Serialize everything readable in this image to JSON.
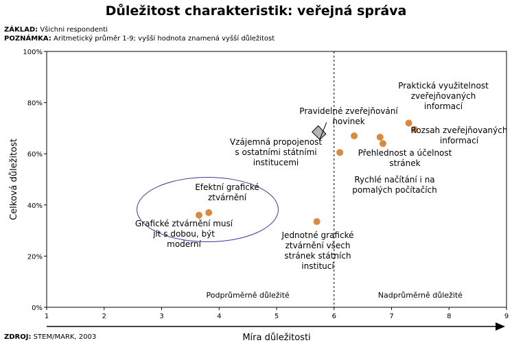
{
  "title": "Důležitost charakteristik: veřejná správa",
  "meta": {
    "basis_label": "ZÁKLAD:",
    "basis_text": "Všichni respondenti",
    "note_label": "POZNÁMKA:",
    "note_text": "Aritmetický průměr 1-9; vyšší hodnota znamená vyšší důležitost",
    "source_label": "ZDROJ:",
    "source_text": "STEM/MARK, 2003"
  },
  "chart_data": {
    "type": "scatter",
    "xlabel": "Míra důležitosti",
    "ylabel": "Celková důležitost",
    "xlim": [
      1,
      9
    ],
    "ylim": [
      0,
      100
    ],
    "x_ticks": [
      "1",
      "2",
      "3",
      "4",
      "5",
      "6",
      "7",
      "8",
      "9"
    ],
    "y_ticks": [
      "0%",
      "20%",
      "40%",
      "60%",
      "80%",
      "100%"
    ],
    "divider_x": 6,
    "region_labels": [
      "Podprůměrně důležité",
      "Nadprůměrně důležité"
    ],
    "marker_color": "#d98a3f",
    "circle_color": "#3a3a9a",
    "points": [
      {
        "x": 3.65,
        "y": 36,
        "label": "Grafické ztvárnění musí jít s dobou, být moderní"
      },
      {
        "x": 3.82,
        "y": 37,
        "label": "Efektní grafické ztvárnění"
      },
      {
        "x": 5.7,
        "y": 33.5,
        "label": "Jednotné grafické ztvárnění všech stránek státních institucí"
      },
      {
        "x": 5.75,
        "y": 68,
        "label": "Vzájemná propojenost s ostatními státními institucemi",
        "shape": "diamond"
      },
      {
        "x": 6.1,
        "y": 60.5,
        "label": "Rychlé načítání i na pomalých počítačích"
      },
      {
        "x": 6.35,
        "y": 67,
        "label": "Pravidelné zveřejňování novinek"
      },
      {
        "x": 6.8,
        "y": 66.5,
        "label": "Přehlednost a účelnost stránek"
      },
      {
        "x": 6.85,
        "y": 64,
        "label": "Přehlednost a účelnost stránek"
      },
      {
        "x": 7.3,
        "y": 72,
        "label": "Praktická využitelnost zveřejňovaných informací"
      },
      {
        "x": 7.4,
        "y": 69.5,
        "label": "Rozsah zveřejňovaných informací"
      }
    ],
    "annotations": [
      {
        "lines": [
          "Praktická využitelnost",
          "zveřejňovaných",
          "informací"
        ]
      },
      {
        "lines": [
          "Pravidelné zveřejňování",
          "novinek"
        ]
      },
      {
        "lines": [
          "Rozsah zveřejňovaných",
          "informací"
        ]
      },
      {
        "lines": [
          "Vzájemná propojenost",
          "s ostatními státními",
          "institucemi"
        ]
      },
      {
        "lines": [
          "Přehlednost a účelnost",
          "stránek"
        ]
      },
      {
        "lines": [
          "Rychlé načítání i na",
          "pomalých počítačích"
        ]
      },
      {
        "lines": [
          "Efektní grafické",
          "ztvárnění"
        ]
      },
      {
        "lines": [
          "Grafické ztvárnění musí",
          "jít s dobou, být",
          "moderní"
        ]
      },
      {
        "lines": [
          "Jednotné grafické",
          "ztvárnění všech",
          "stránek státních",
          "institucí"
        ]
      }
    ]
  }
}
